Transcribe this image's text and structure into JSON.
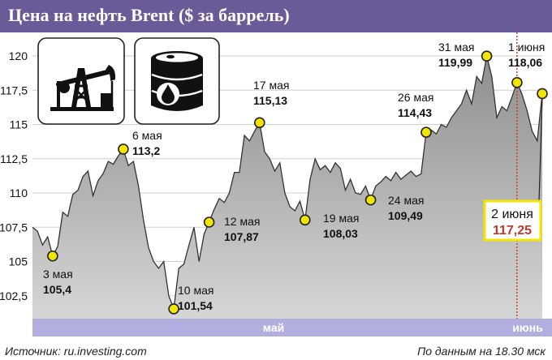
{
  "title": "Цена на нефть Brent ($ за баррель)",
  "source": "Источник: ru.investing.com",
  "note": "По данным на 18.30 мск",
  "icons": [
    "oil-pump-icon",
    "oil-barrel-icon"
  ],
  "colors": {
    "title_bg": "#6a5a98",
    "area": "#a9a9a9",
    "band": "#b3aee0",
    "marker": "#f2e600",
    "highlight": "#c0392b"
  },
  "chart_data": {
    "type": "area",
    "ylim": [
      100.5,
      121.5
    ],
    "yticks": [
      "120",
      "117,5",
      "115",
      "112,5",
      "110",
      "107,5",
      "105",
      "102,5"
    ],
    "ytick_values": [
      120,
      117.5,
      115,
      112.5,
      110,
      107.5,
      105,
      102.5
    ],
    "month_labels": [
      "май",
      "июнь"
    ],
    "series": [
      {
        "x": [
          0,
          1,
          2,
          3,
          4,
          5,
          6,
          7,
          8,
          9,
          10,
          11,
          12,
          13,
          14,
          15,
          16,
          17,
          18,
          19,
          20,
          21,
          22,
          23,
          24,
          25,
          26,
          27,
          28,
          29,
          30,
          31,
          32,
          33,
          34,
          35,
          36,
          37,
          38,
          39,
          40,
          41,
          42,
          43,
          44,
          45,
          46,
          47,
          48,
          49,
          50,
          51,
          52,
          53,
          54,
          55,
          56,
          57,
          58,
          59,
          60,
          61,
          62,
          63,
          64,
          65,
          66,
          67,
          68,
          69,
          70,
          71,
          72,
          73,
          74,
          75,
          76,
          77,
          78,
          79,
          80,
          81,
          82,
          83,
          84,
          85,
          86,
          87,
          88,
          89,
          90,
          91,
          92,
          93,
          94,
          95,
          96,
          97,
          98,
          99,
          100,
          101
        ],
        "values": [
          107.5,
          107.2,
          106.2,
          106.8,
          105.4,
          106.1,
          108.6,
          108.3,
          109.9,
          110.2,
          111.2,
          111.6,
          109.8,
          110.9,
          111.4,
          112.3,
          112.1,
          112.7,
          113.2,
          112.0,
          112.3,
          110.5,
          108.0,
          106.0,
          105.0,
          104.5,
          105.0,
          102.5,
          101.54,
          104.5,
          104.8,
          106.2,
          107.5,
          105.0,
          107.0,
          107.87,
          108.8,
          109.6,
          109.3,
          110.0,
          111.5,
          111.5,
          114.2,
          113.8,
          114.5,
          115.13,
          113.0,
          112.5,
          111.6,
          112.2,
          110.0,
          109.0,
          108.7,
          109.4,
          108.03,
          111.0,
          112.5,
          111.7,
          112.0,
          111.5,
          112.2,
          111.8,
          110.2,
          111.0,
          110.0,
          109.9,
          110.5,
          109.49,
          110.5,
          110.8,
          111.2,
          110.9,
          111.5,
          111.0,
          111.3,
          111.6,
          111.2,
          111.4,
          114.43,
          114.6,
          114.3,
          115.0,
          114.8,
          115.5,
          116.0,
          116.5,
          117.5,
          116.5,
          118.5,
          118.0,
          119.99,
          118.5,
          115.5,
          116.3,
          116.0,
          117.0,
          118.06,
          117.2,
          116.0,
          114.5,
          113.8,
          117.25
        ]
      }
    ],
    "annotations": [
      {
        "x": 4,
        "value": 105.4,
        "date": "3 мая",
        "value_label": "105,4"
      },
      {
        "x": 18,
        "value": 113.2,
        "date": "6 мая",
        "value_label": "113,2"
      },
      {
        "x": 28,
        "value": 101.54,
        "date": "10 мая",
        "value_label": "101,54"
      },
      {
        "x": 35,
        "value": 107.87,
        "date": "12 мая",
        "value_label": "107,87"
      },
      {
        "x": 45,
        "value": 115.13,
        "date": "17 мая",
        "value_label": "115,13"
      },
      {
        "x": 54,
        "value": 108.03,
        "date": "19 мая",
        "value_label": "108,03"
      },
      {
        "x": 67,
        "value": 109.49,
        "date": "24 мая",
        "value_label": "109,49"
      },
      {
        "x": 78,
        "value": 114.43,
        "date": "26 мая",
        "value_label": "114,43"
      },
      {
        "x": 90,
        "value": 119.99,
        "date": "31 мая",
        "value_label": "119,99"
      },
      {
        "x": 96,
        "value": 118.06,
        "date": "1 июня",
        "value_label": "118,06"
      },
      {
        "x": 101,
        "value": 117.25,
        "date": "2 июня",
        "value_label": "117,25"
      }
    ]
  }
}
